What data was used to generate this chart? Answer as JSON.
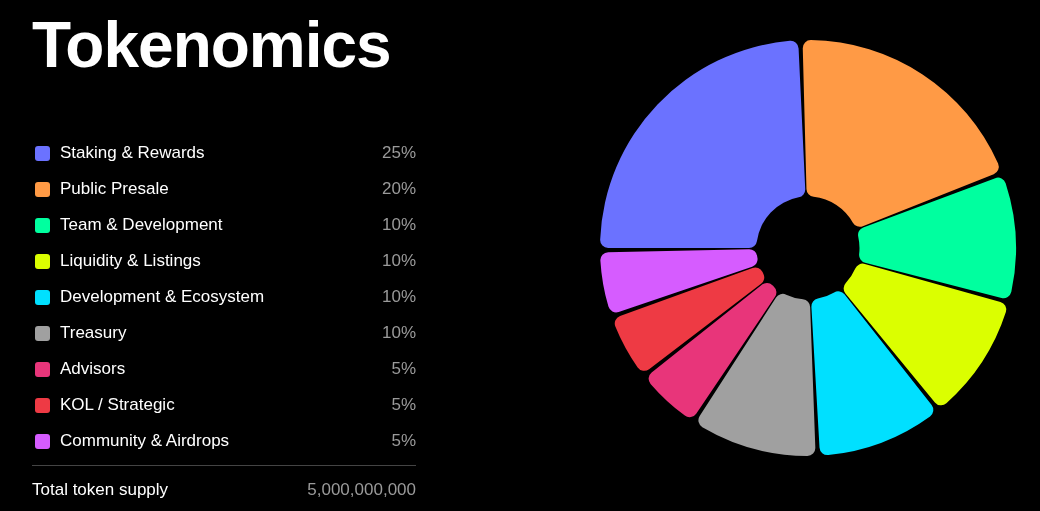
{
  "chart_data": {
    "type": "donut",
    "title": "Tokenomics",
    "categories": [
      "Staking & Rewards",
      "Public Presale",
      "Team & Development",
      "Liquidity & Listings",
      "Development & Ecosystem",
      "Treasury",
      "Advisors",
      "KOL / Strategic",
      "Community & Airdrops"
    ],
    "values": [
      25,
      20,
      10,
      10,
      10,
      10,
      5,
      5,
      5
    ],
    "colors": [
      "#6b72ff",
      "#ff9a45",
      "#00ff9f",
      "#dbff00",
      "#00e0ff",
      "#a0a0a0",
      "#e8357a",
      "#ee3a44",
      "#d65cff"
    ],
    "value_labels": [
      "25%",
      "20%",
      "10%",
      "10%",
      "10%",
      "10%",
      "5%",
      "5%",
      "5%"
    ],
    "legend": "left",
    "annotations": [
      "Total token supply",
      "5,000,000,000"
    ]
  }
}
